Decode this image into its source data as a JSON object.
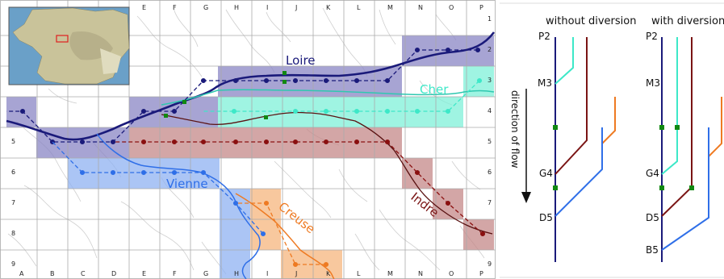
{
  "colors": {
    "loire": "#1a1a7a",
    "loire_cell": "#8a86c4",
    "cher": "#3de8c8",
    "cher_cell": "#7ff0d8",
    "vienne": "#2f6fe8",
    "vienne_cell": "#8fb2f2",
    "creuse": "#ee7a22",
    "creuse_cell": "#f6b67e",
    "indre": "#7a1414",
    "indre_cell": "#c48888",
    "diversion": "#118811",
    "grid": "#aaaaaa",
    "streams": "#c8c8c8"
  },
  "grid": {
    "columns": [
      "A",
      "B",
      "C",
      "D",
      "E",
      "F",
      "G",
      "H",
      "I",
      "J",
      "K",
      "L",
      "M",
      "N",
      "O",
      "P"
    ],
    "top_columns": [
      "E",
      "F",
      "G",
      "H",
      "I",
      "J",
      "K",
      "L",
      "M",
      "N",
      "O",
      "P"
    ],
    "rows": [
      "1",
      "2",
      "3",
      "4",
      "5",
      "6",
      "7",
      "8",
      "9"
    ]
  },
  "rivers": {
    "loire": "Loire",
    "cher": "Cher",
    "vienne": "Vienne",
    "creuse": "Creuse",
    "indre": "Indre"
  },
  "right_panel": {
    "without_title": "without diversion",
    "with_title": "with diversion",
    "axis_label": "direction of flow",
    "without_nodes": [
      "P2",
      "M3",
      "G4",
      "D5"
    ],
    "with_nodes": [
      "P2",
      "M3",
      "G4",
      "D5",
      "B5"
    ]
  },
  "inset_icon": "france-locator-map-icon"
}
